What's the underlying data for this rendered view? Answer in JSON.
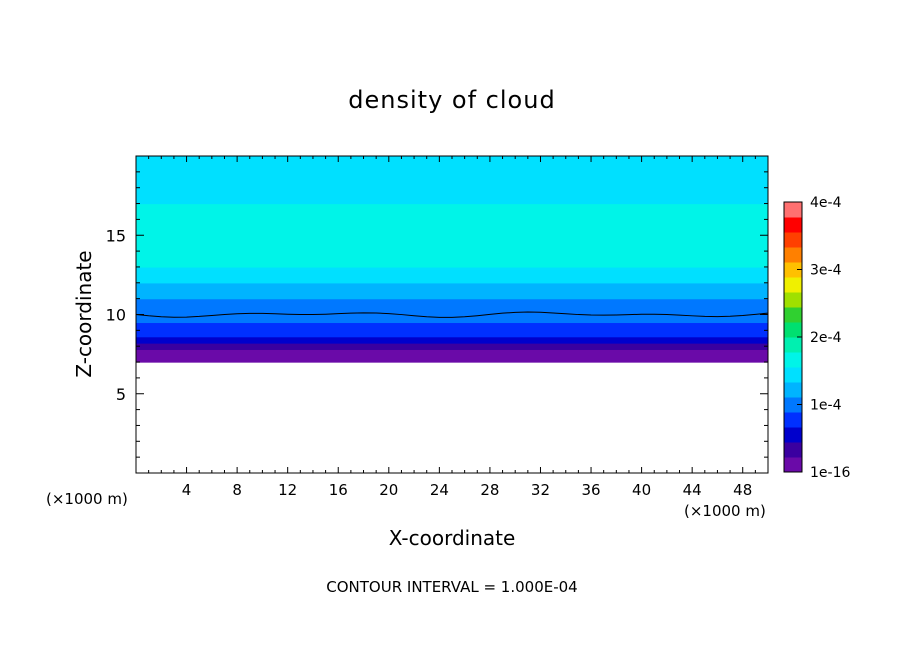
{
  "chart_data": {
    "type": "heatmap",
    "title": "density of cloud",
    "xlabel": "X-coordinate",
    "ylabel": "Z-coordinate",
    "x_unit_left": "(×1000 m)",
    "x_unit_right": "(×1000 m)",
    "footer": "CONTOUR INTERVAL = 1.000E-04",
    "xlim": [
      0,
      50
    ],
    "ylim": [
      0,
      20
    ],
    "x_ticks": [
      4,
      8,
      12,
      16,
      20,
      24,
      28,
      32,
      36,
      40,
      44,
      48
    ],
    "y_ticks": [
      5,
      10,
      15
    ],
    "contour_level_z": 10,
    "cloud_base_z": 7,
    "colorbar": {
      "range": [
        0,
        0.0004
      ],
      "tick_labels": [
        "4e-4",
        "3e-4",
        "2e-4",
        "1e-4",
        "1e-16"
      ],
      "tick_values": [
        0.0004,
        0.0003,
        0.0002,
        0.0001,
        0
      ],
      "colors": [
        "#6a0aa8",
        "#3a00a0",
        "#0000cc",
        "#0030ff",
        "#0078ff",
        "#00b4ff",
        "#00e0ff",
        "#00f4e8",
        "#00f0b0",
        "#00e070",
        "#30d030",
        "#a0e000",
        "#f0f000",
        "#ffc000",
        "#ff8000",
        "#ff4000",
        "#ff0000",
        "#ff7070"
      ]
    },
    "profile": [
      {
        "z": 7.0,
        "value": 5e-06
      },
      {
        "z": 7.4,
        "value": 2e-05
      },
      {
        "z": 7.8,
        "value": 4e-05
      },
      {
        "z": 8.2,
        "value": 6e-05
      },
      {
        "z": 8.6,
        "value": 7e-05
      },
      {
        "z": 9.0,
        "value": 8e-05
      },
      {
        "z": 9.5,
        "value": 9e-05
      },
      {
        "z": 10.0,
        "value": 0.0001
      },
      {
        "z": 10.5,
        "value": 0.00011
      },
      {
        "z": 11.0,
        "value": 0.000125
      },
      {
        "z": 12.0,
        "value": 0.000145
      },
      {
        "z": 13.0,
        "value": 0.00016
      },
      {
        "z": 14.0,
        "value": 0.00017
      },
      {
        "z": 15.0,
        "value": 0.000172
      },
      {
        "z": 16.0,
        "value": 0.000168
      },
      {
        "z": 17.0,
        "value": 0.000155
      },
      {
        "z": 18.0,
        "value": 0.00014
      },
      {
        "z": 19.0,
        "value": 0.000135
      },
      {
        "z": 20.0,
        "value": 0.00013
      }
    ]
  }
}
